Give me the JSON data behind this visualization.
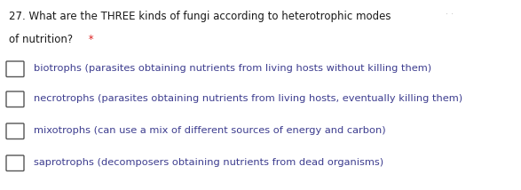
{
  "background_color": "#ffffff",
  "question_line1": "27. What are the THREE kinds of fungi according to heterotrophic modes",
  "question_line2": "of nutrition?",
  "asterisk": "*",
  "question_color": "#1a1a1a",
  "asterisk_color": "#dd2222",
  "options": [
    "biotrophs (parasites obtaining nutrients from living hosts without killing them)",
    "necrotrophs (parasites obtaining nutrients from living hosts, eventually killing them)",
    "mixotrophs (can use a mix of different sources of energy and carbon)",
    "saprotrophs (decomposers obtaining nutrients from dead organisms)"
  ],
  "option_color": "#3d3d8f",
  "checkbox_edge_color": "#555555",
  "checkbox_face_color": "#ffffff",
  "font_size_question": 8.5,
  "font_size_options": 8.2,
  "dots_text": ". .",
  "dots_color": "#bbbbbb",
  "fig_width": 5.87,
  "fig_height": 2.14,
  "dpi": 100
}
